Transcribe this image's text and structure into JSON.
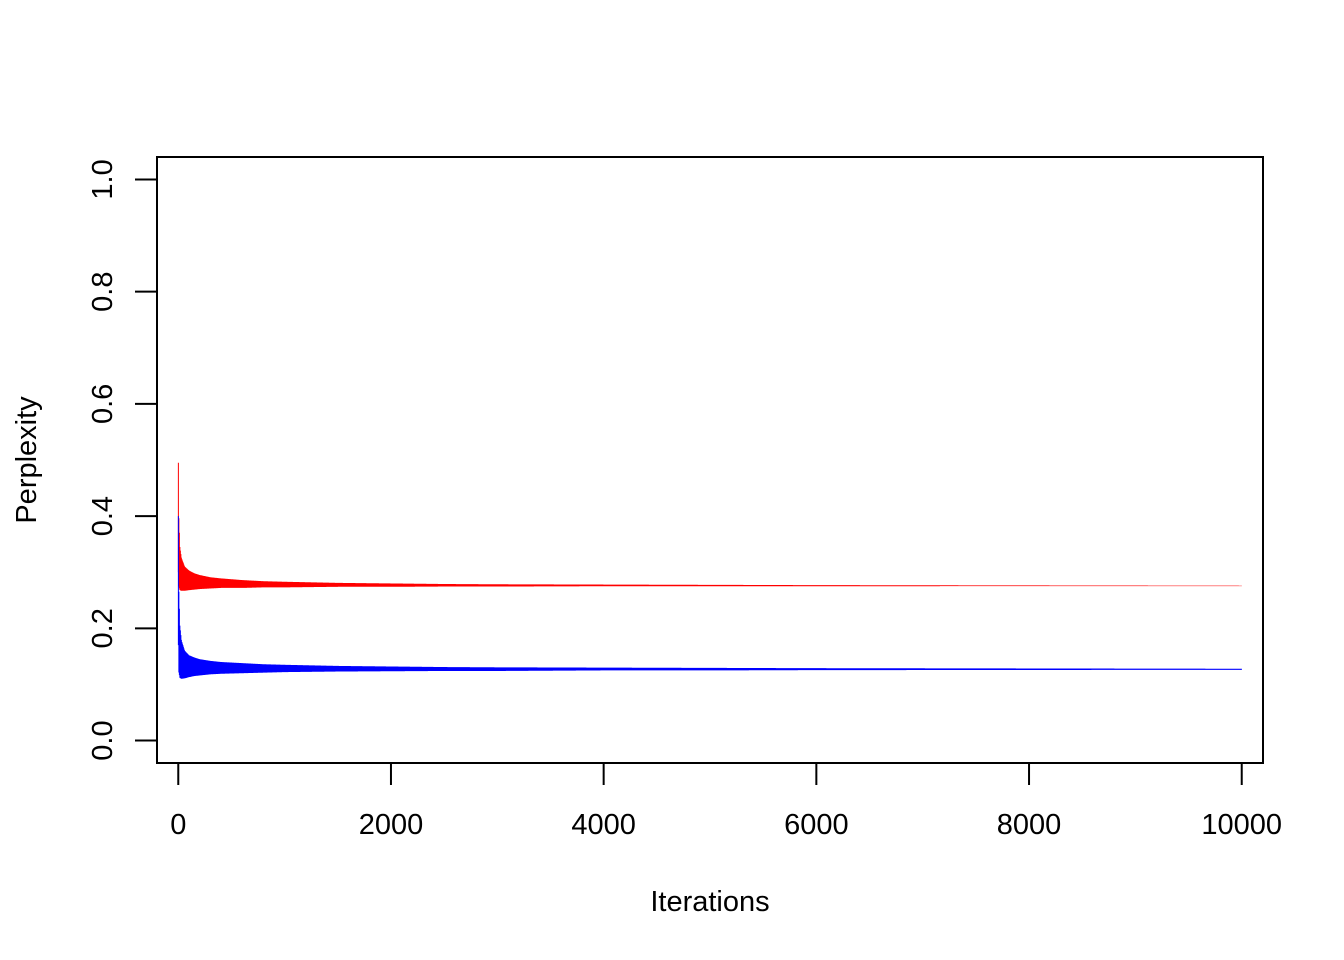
{
  "chart_data": {
    "type": "line",
    "title": "",
    "xlabel": "Iterations",
    "ylabel": "Perplexity",
    "xlim": [
      -200,
      10200
    ],
    "ylim": [
      -0.04,
      1.04
    ],
    "x_ticks": [
      0,
      2000,
      4000,
      6000,
      8000,
      10000
    ],
    "x_tick_labels": [
      "0",
      "2000",
      "4000",
      "6000",
      "8000",
      "10000"
    ],
    "y_ticks": [
      0.0,
      0.2,
      0.4,
      0.6,
      0.8,
      1.0
    ],
    "y_tick_labels": [
      "0.0",
      "0.2",
      "0.4",
      "0.6",
      "0.8",
      "1.0"
    ],
    "grid": false,
    "legend": "none",
    "series": [
      {
        "color": "#ff0000",
        "envelope": {
          "x": [
            1,
            5,
            15,
            30,
            60,
            100,
            150,
            200,
            300,
            400,
            600,
            800,
            1000,
            1500,
            2000,
            2500,
            3000,
            4000,
            5000,
            6000,
            8000,
            10000
          ],
          "upper": [
            0.495,
            0.4,
            0.345,
            0.325,
            0.31,
            0.303,
            0.298,
            0.295,
            0.291,
            0.289,
            0.286,
            0.284,
            0.283,
            0.281,
            0.28,
            0.279,
            0.2785,
            0.278,
            0.2775,
            0.277,
            0.2765,
            0.276
          ],
          "lower": [
            0.3,
            0.275,
            0.268,
            0.267,
            0.267,
            0.268,
            0.269,
            0.27,
            0.271,
            0.272,
            0.272,
            0.273,
            0.273,
            0.274,
            0.274,
            0.2745,
            0.2745,
            0.275,
            0.275,
            0.275,
            0.2752,
            0.2752
          ]
        }
      },
      {
        "color": "#0000ff",
        "envelope": {
          "x": [
            1,
            5,
            15,
            30,
            60,
            100,
            150,
            200,
            300,
            400,
            600,
            800,
            1000,
            1500,
            2000,
            2500,
            3000,
            4000,
            5000,
            6000,
            8000,
            10000
          ],
          "upper": [
            0.4,
            0.27,
            0.205,
            0.178,
            0.16,
            0.152,
            0.148,
            0.145,
            0.142,
            0.14,
            0.138,
            0.136,
            0.135,
            0.133,
            0.132,
            0.131,
            0.1305,
            0.13,
            0.1295,
            0.129,
            0.1285,
            0.128
          ],
          "lower": [
            0.17,
            0.122,
            0.112,
            0.11,
            0.111,
            0.113,
            0.115,
            0.116,
            0.118,
            0.119,
            0.12,
            0.121,
            0.122,
            0.123,
            0.1235,
            0.124,
            0.124,
            0.125,
            0.125,
            0.1255,
            0.1258,
            0.126
          ]
        }
      }
    ]
  }
}
